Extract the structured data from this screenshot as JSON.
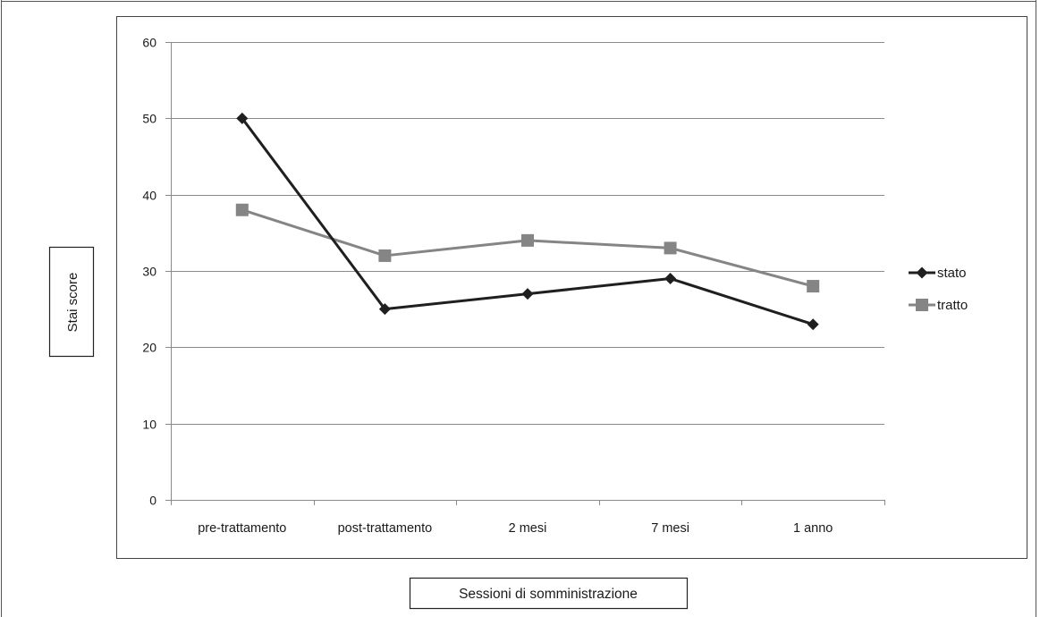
{
  "chart_data": {
    "type": "line",
    "categories": [
      "pre-trattamento",
      "post-trattamento",
      "2 mesi",
      "7 mesi",
      "1 anno"
    ],
    "series": [
      {
        "name": "stato",
        "values": [
          50,
          25,
          27,
          29,
          23
        ],
        "color": "#1f1f1f",
        "marker": "diamond"
      },
      {
        "name": "tratto",
        "values": [
          38,
          32,
          34,
          33,
          28
        ],
        "color": "#858585",
        "marker": "square"
      }
    ],
    "title": "",
    "xlabel": "Sessioni di somministrazione",
    "ylabel": "Stai score",
    "ylim": [
      0,
      60
    ],
    "yticks": [
      0,
      10,
      20,
      30,
      40,
      50,
      60
    ],
    "grid": true,
    "legend": "right"
  }
}
